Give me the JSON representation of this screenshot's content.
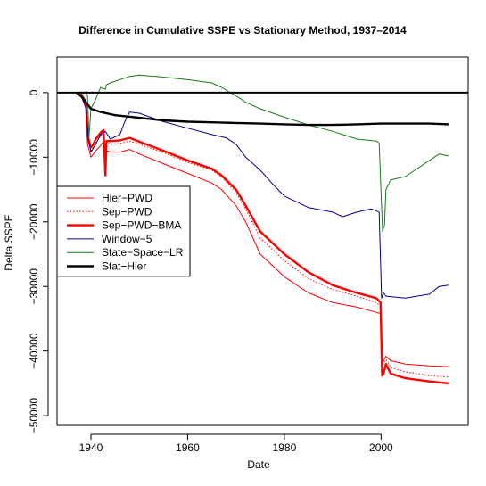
{
  "chart_data": {
    "type": "line",
    "title": "Difference in Cumulative SSPE vs Stationary Method, 1937–2014",
    "xlabel": "Date",
    "ylabel": "Delta SSPE",
    "xlim": [
      1933,
      2018
    ],
    "ylim": [
      -51500,
      5500
    ],
    "xticks": [
      1940,
      1960,
      1980,
      2000
    ],
    "xtick_labels": [
      "1940",
      "1960",
      "1980",
      "2000"
    ],
    "yticks": [
      0,
      -10000,
      -20000,
      -30000,
      -40000,
      -50000
    ],
    "ytick_labels": [
      "0",
      "−10000",
      "−20000",
      "−30000",
      "−40000",
      "−50000"
    ],
    "reference_line": {
      "y": 0,
      "color": "#000000"
    },
    "legend_position": "left",
    "series": [
      {
        "name": "Hier−PWD",
        "color": "#ff0000",
        "style": "solid",
        "width": "thin",
        "x": [
          1937,
          1938,
          1938.6,
          1939,
          1939.3,
          1940,
          1940.5,
          1941,
          1942,
          1942.6,
          1943,
          1943.2,
          1944,
          1946,
          1948,
          1950,
          1955,
          1960,
          1965,
          1967,
          1970,
          1972,
          1975,
          1980,
          1985,
          1990,
          1995,
          1999,
          1999.9,
          2000.2,
          2000.5,
          2001,
          2002,
          2005,
          2010,
          2014
        ],
        "y": [
          0,
          -500,
          -1500,
          -2500,
          -8000,
          -10000,
          -9500,
          -9000,
          -8200,
          -7500,
          -12000,
          -9000,
          -9200,
          -9200,
          -8800,
          -9500,
          -11000,
          -12500,
          -14000,
          -15000,
          -17500,
          -20000,
          -25000,
          -28500,
          -31000,
          -32500,
          -33200,
          -34000,
          -34200,
          -42500,
          -41500,
          -40800,
          -41500,
          -42000,
          -42300,
          -42400
        ]
      },
      {
        "name": "Sep−PWD",
        "color": "#ff0000",
        "style": "dotted",
        "width": "thin",
        "x": [
          1937,
          1938,
          1938.6,
          1939,
          1939.3,
          1940,
          1940.5,
          1941,
          1942,
          1942.6,
          1943,
          1943.2,
          1944,
          1946,
          1948,
          1950,
          1955,
          1960,
          1965,
          1967,
          1970,
          1972,
          1975,
          1980,
          1985,
          1990,
          1995,
          1999,
          1999.9,
          2000.2,
          2000.5,
          2001,
          2002,
          2005,
          2010,
          2014
        ],
        "y": [
          0,
          -400,
          -1200,
          -2000,
          -7200,
          -9000,
          -8500,
          -7800,
          -6800,
          -6000,
          -10500,
          -7800,
          -8000,
          -7900,
          -7500,
          -8000,
          -9300,
          -10800,
          -12000,
          -13000,
          -15500,
          -18000,
          -22500,
          -26000,
          -28800,
          -30500,
          -31500,
          -32500,
          -33000,
          -42800,
          -42000,
          -41300,
          -42500,
          -43200,
          -43800,
          -44000
        ]
      },
      {
        "name": "Sep−PWD−BMA",
        "color": "#ff0000",
        "style": "solid",
        "width": "thick",
        "x": [
          1937,
          1938,
          1938.6,
          1939,
          1939.3,
          1940,
          1940.5,
          1941,
          1942,
          1942.6,
          1943,
          1943.2,
          1944,
          1946,
          1948,
          1950,
          1955,
          1960,
          1965,
          1967,
          1970,
          1972,
          1975,
          1980,
          1985,
          1990,
          1995,
          1999,
          1999.9,
          2000.2,
          2000.5,
          2001,
          2002,
          2005,
          2010,
          2014
        ],
        "y": [
          0,
          -300,
          -1000,
          -1800,
          -6800,
          -8500,
          -8000,
          -7200,
          -6200,
          -5800,
          -12800,
          -7500,
          -7500,
          -7400,
          -7000,
          -7600,
          -9000,
          -10500,
          -11800,
          -12800,
          -15000,
          -17500,
          -21500,
          -25000,
          -27800,
          -29800,
          -31000,
          -31800,
          -32500,
          -43800,
          -43500,
          -42000,
          -43500,
          -44200,
          -44700,
          -45000
        ]
      },
      {
        "name": "Window−5",
        "color": "#00008b",
        "style": "solid",
        "width": "thin",
        "x": [
          1937,
          1938,
          1939,
          1939.5,
          1940,
          1941,
          1942,
          1943,
          1944,
          1946,
          1947,
          1948,
          1950,
          1955,
          1960,
          1965,
          1968,
          1970,
          1972,
          1975,
          1978,
          1980,
          1985,
          1990,
          1992,
          1995,
          1998,
          1999.6,
          2000.1,
          2000.5,
          2001,
          2005,
          2010,
          2012,
          2014
        ],
        "y": [
          0,
          -500,
          -2500,
          -7500,
          -9200,
          -8000,
          -6500,
          -6000,
          -7200,
          -6500,
          -4500,
          -3000,
          -3200,
          -4500,
          -5500,
          -6500,
          -7000,
          -8000,
          -10000,
          -12000,
          -14500,
          -16000,
          -17800,
          -18500,
          -19200,
          -18500,
          -18000,
          -18500,
          -31800,
          -31000,
          -31500,
          -31800,
          -31200,
          -30000,
          -29800
        ]
      },
      {
        "name": "State−Space−LR",
        "color": "#1a7a1a",
        "style": "solid",
        "width": "thin",
        "x": [
          1937,
          1938,
          1939,
          1939.3,
          1939.6,
          1940,
          1941,
          1942,
          1943,
          1943.2,
          1944,
          1946,
          1948,
          1950,
          1955,
          1960,
          1965,
          1967,
          1970,
          1972,
          1975,
          1980,
          1985,
          1990,
          1995,
          1999,
          1999.6,
          2000.3,
          2000.7,
          2001,
          2002,
          2005,
          2010,
          2012,
          2014
        ],
        "y": [
          0,
          -300,
          200,
          -600,
          -7000,
          -2500,
          -1000,
          800,
          500,
          1200,
          1500,
          2000,
          2500,
          2700,
          2400,
          2000,
          1500,
          800,
          -500,
          -1500,
          -2500,
          -3800,
          -5000,
          -6000,
          -7200,
          -7500,
          -7800,
          -21500,
          -20500,
          -15000,
          -13500,
          -13000,
          -10500,
          -9500,
          -9800
        ]
      },
      {
        "name": "Stat−Hier",
        "color": "#000000",
        "style": "solid",
        "width": "thick",
        "x": [
          1937,
          1938,
          1939,
          1940,
          1942,
          1945,
          1950,
          1955,
          1960,
          1965,
          1970,
          1975,
          1980,
          1985,
          1990,
          1995,
          2000,
          2005,
          2010,
          2014
        ],
        "y": [
          0,
          -600,
          -1500,
          -2500,
          -3000,
          -3500,
          -3900,
          -4300,
          -4500,
          -4600,
          -4700,
          -4800,
          -4900,
          -5000,
          -5000,
          -4900,
          -4800,
          -4800,
          -4800,
          -4900
        ]
      }
    ]
  }
}
